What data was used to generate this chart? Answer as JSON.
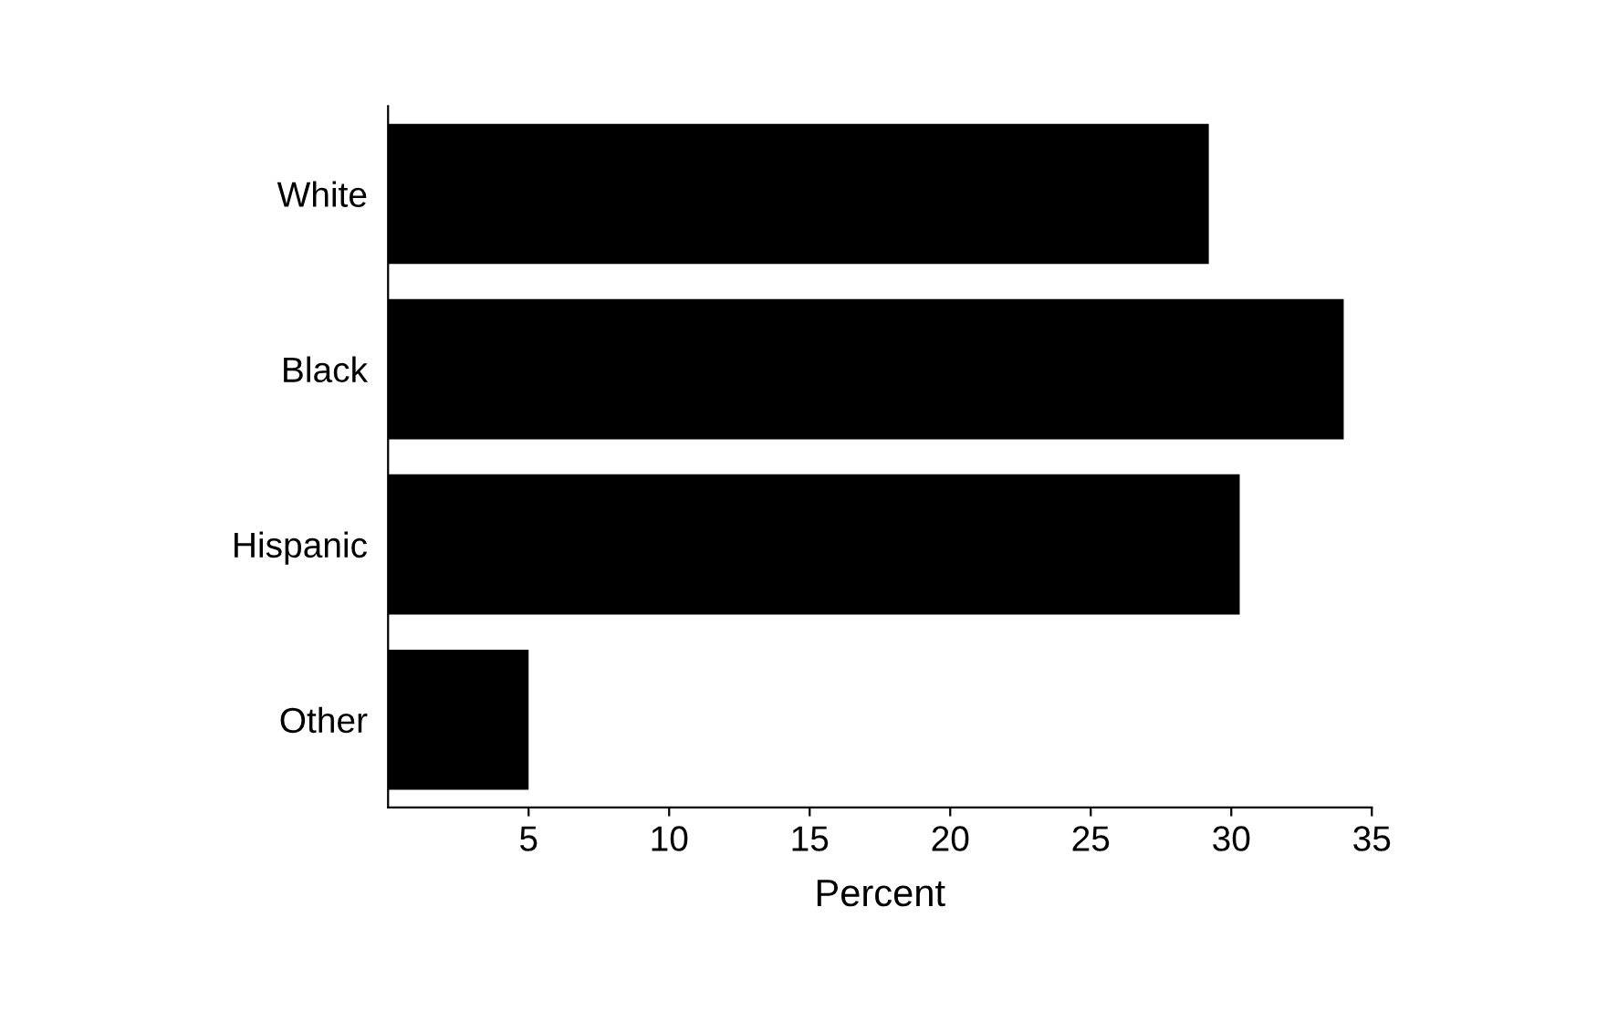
{
  "chart_data": {
    "type": "bar",
    "orientation": "horizontal",
    "xlabel": "Percent",
    "categories": [
      "White",
      "Black",
      "Hispanic",
      "Other"
    ],
    "values": [
      29.2,
      34.0,
      30.3,
      5.0
    ],
    "color": "#000000",
    "xlim": [
      0,
      35
    ],
    "xticks": [
      5,
      10,
      15,
      20,
      25,
      30,
      35
    ],
    "grid": false,
    "legend": false
  }
}
